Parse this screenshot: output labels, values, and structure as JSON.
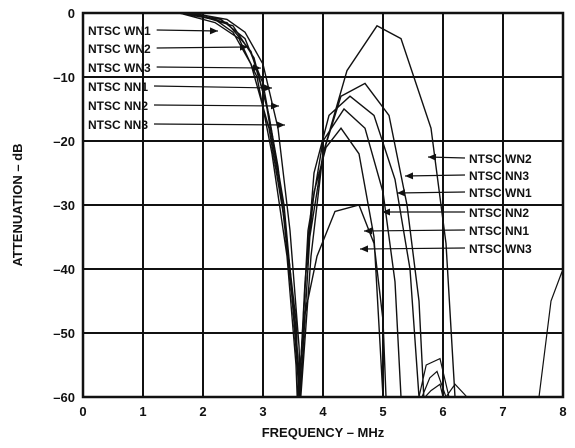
{
  "chart_data": {
    "type": "line",
    "xlabel": "FREQUENCY – MHz",
    "ylabel": "ATTENUATION – dB",
    "xlim": [
      0,
      8
    ],
    "ylim": [
      -60,
      0
    ],
    "xticks": [
      0,
      1,
      2,
      3,
      4,
      5,
      6,
      7,
      8
    ],
    "yticks": [
      0,
      -10,
      -20,
      -30,
      -40,
      -50,
      -60
    ],
    "xtick_labels": [
      "0",
      "1",
      "2",
      "3",
      "4",
      "5",
      "6",
      "7",
      "8"
    ],
    "ytick_labels": [
      "0",
      "–10",
      "–20",
      "–30",
      "–40",
      "–50",
      "–60"
    ],
    "grid": true,
    "annotations": {
      "left": [
        "NTSC WN1",
        "NTSC WN2",
        "NTSC WN3",
        "NTSC NN1",
        "NTSC NN2",
        "NTSC NN3"
      ],
      "right": [
        "NTSC WN2",
        "NTSC NN3",
        "NTSC WN1",
        "NTSC NN2",
        "NTSC NN1",
        "NTSC WN3"
      ]
    },
    "series": [
      {
        "name": "NTSC WN1",
        "passband": [
          [
            0,
            0
          ],
          [
            1.6,
            0
          ],
          [
            2.2,
            -1
          ],
          [
            2.5,
            -3
          ],
          [
            2.8,
            -8
          ],
          [
            3.1,
            -18
          ],
          [
            3.35,
            -32
          ],
          [
            3.55,
            -48
          ],
          [
            3.6,
            -60
          ]
        ],
        "sidelobe": [
          [
            3.6,
            -60
          ],
          [
            3.72,
            -40
          ],
          [
            3.85,
            -25
          ],
          [
            4.1,
            -16
          ],
          [
            4.45,
            -13
          ],
          [
            4.85,
            -16
          ],
          [
            5.2,
            -26
          ],
          [
            5.45,
            -40
          ],
          [
            5.6,
            -60
          ]
        ]
      },
      {
        "name": "NTSC WN2",
        "passband": [
          [
            0,
            0
          ],
          [
            1.8,
            0
          ],
          [
            2.4,
            -1
          ],
          [
            2.7,
            -3
          ],
          [
            3.0,
            -8
          ],
          [
            3.25,
            -18
          ],
          [
            3.45,
            -34
          ],
          [
            3.6,
            -52
          ],
          [
            3.63,
            -60
          ]
        ],
        "sidelobe": [
          [
            3.63,
            -60
          ],
          [
            3.8,
            -38
          ],
          [
            4.0,
            -22
          ],
          [
            4.4,
            -9
          ],
          [
            4.9,
            -2
          ],
          [
            5.3,
            -4
          ],
          [
            5.8,
            -18
          ],
          [
            6.05,
            -36
          ],
          [
            6.2,
            -60
          ]
        ]
      },
      {
        "name": "NTSC WN3",
        "passband": [
          [
            0,
            0
          ],
          [
            1.6,
            0
          ],
          [
            2.2,
            -1.5
          ],
          [
            2.6,
            -4
          ],
          [
            2.9,
            -10
          ],
          [
            3.15,
            -22
          ],
          [
            3.4,
            -38
          ],
          [
            3.55,
            -55
          ],
          [
            3.57,
            -60
          ]
        ],
        "sidelobe": [
          [
            3.57,
            -60
          ],
          [
            3.7,
            -47
          ],
          [
            3.9,
            -38
          ],
          [
            4.2,
            -31
          ],
          [
            4.6,
            -30
          ],
          [
            4.85,
            -36
          ],
          [
            5.0,
            -48
          ],
          [
            5.05,
            -60
          ]
        ]
      },
      {
        "name": "NTSC NN1",
        "passband": [
          [
            0,
            0
          ],
          [
            1.6,
            0
          ],
          [
            2.3,
            -1
          ],
          [
            2.7,
            -4
          ],
          [
            3.0,
            -11
          ],
          [
            3.25,
            -24
          ],
          [
            3.45,
            -40
          ],
          [
            3.57,
            -55
          ],
          [
            3.6,
            -60
          ]
        ],
        "sidelobe": [
          [
            3.6,
            -60
          ],
          [
            3.75,
            -34
          ],
          [
            4.0,
            -20
          ],
          [
            4.35,
            -15
          ],
          [
            4.7,
            -18
          ],
          [
            5.0,
            -28
          ],
          [
            5.2,
            -42
          ],
          [
            5.3,
            -60
          ]
        ]
      },
      {
        "name": "NTSC NN2",
        "passband": [
          [
            0,
            0
          ],
          [
            1.7,
            0
          ],
          [
            2.4,
            -1.5
          ],
          [
            2.8,
            -6
          ],
          [
            3.05,
            -14
          ],
          [
            3.3,
            -28
          ],
          [
            3.48,
            -44
          ],
          [
            3.58,
            -55
          ],
          [
            3.6,
            -60
          ]
        ],
        "sidelobe": [
          [
            3.6,
            -60
          ],
          [
            3.7,
            -42
          ],
          [
            3.85,
            -28
          ],
          [
            4.05,
            -21
          ],
          [
            4.3,
            -18
          ],
          [
            4.6,
            -22
          ],
          [
            4.85,
            -35
          ],
          [
            5.0,
            -60
          ]
        ]
      },
      {
        "name": "NTSC NN3",
        "passband": [
          [
            0,
            0
          ],
          [
            1.8,
            0
          ],
          [
            2.5,
            -2
          ],
          [
            2.85,
            -7
          ],
          [
            3.1,
            -16
          ],
          [
            3.35,
            -30
          ],
          [
            3.5,
            -45
          ],
          [
            3.6,
            -56
          ],
          [
            3.62,
            -60
          ]
        ],
        "sidelobe": [
          [
            3.62,
            -60
          ],
          [
            3.78,
            -35
          ],
          [
            4.0,
            -22
          ],
          [
            4.3,
            -13
          ],
          [
            4.7,
            -11
          ],
          [
            5.1,
            -16
          ],
          [
            5.4,
            -30
          ],
          [
            5.6,
            -45
          ],
          [
            5.68,
            -60
          ]
        ]
      }
    ],
    "stopband_ripples": [
      [
        [
          5.6,
          -60
        ],
        [
          5.72,
          -55
        ],
        [
          5.95,
          -54
        ],
        [
          6.1,
          -60
        ]
      ],
      [
        [
          5.65,
          -60
        ],
        [
          5.78,
          -57
        ],
        [
          5.9,
          -56
        ],
        [
          6.05,
          -60
        ]
      ],
      [
        [
          5.7,
          -60
        ],
        [
          5.8,
          -59
        ],
        [
          5.95,
          -58
        ],
        [
          6.0,
          -60
        ]
      ],
      [
        [
          6.05,
          -60
        ],
        [
          6.2,
          -58
        ],
        [
          6.4,
          -60
        ]
      ],
      [
        [
          7.6,
          -60
        ],
        [
          7.8,
          -45
        ],
        [
          8.0,
          -40
        ]
      ]
    ]
  }
}
